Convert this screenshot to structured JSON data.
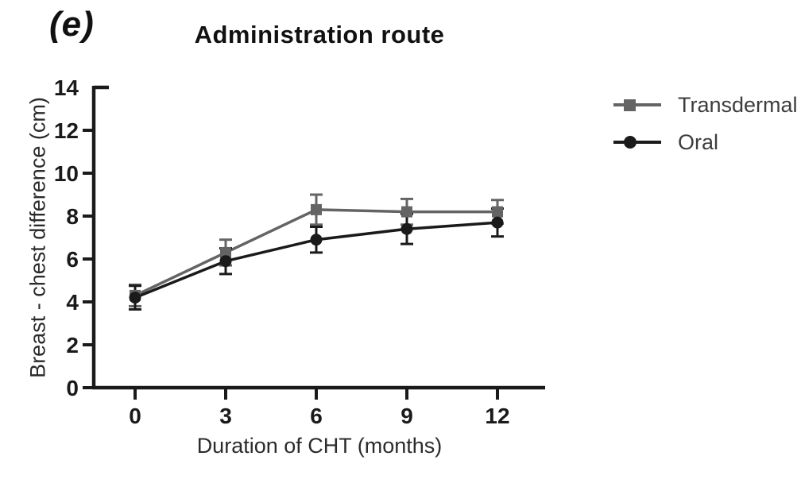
{
  "figure": {
    "panel_label": "(e)"
  },
  "chart_data": {
    "type": "line",
    "title": "Administration route",
    "xlabel": "Duration of CHT (months)",
    "ylabel": "Breast - chest difference (cm)",
    "x": [
      0,
      3,
      6,
      9,
      12
    ],
    "xticks": [
      "0",
      "3",
      "6",
      "9",
      "12"
    ],
    "yticks": [
      "0",
      "2",
      "4",
      "6",
      "8",
      "10",
      "12",
      "14"
    ],
    "ytick_values": [
      0,
      2,
      4,
      6,
      8,
      10,
      12,
      14
    ],
    "ylim": [
      0,
      14
    ],
    "xlim": [
      -1.4,
      13.6
    ],
    "grid": false,
    "legend_position": "right",
    "error_bars": true,
    "series": [
      {
        "name": "Transdermal",
        "marker": "square",
        "color": "#646464",
        "values": [
          4.3,
          6.3,
          8.3,
          8.2,
          8.2
        ],
        "errors": [
          0.5,
          0.6,
          0.7,
          0.6,
          0.55
        ]
      },
      {
        "name": "Oral",
        "marker": "circle",
        "color": "#1a1a1a",
        "values": [
          4.2,
          5.9,
          6.9,
          7.4,
          7.7
        ],
        "errors": [
          0.55,
          0.6,
          0.6,
          0.7,
          0.65
        ]
      }
    ],
    "axis_color": "#1a1a1a",
    "tick_label_color": "#1a1a1a"
  }
}
